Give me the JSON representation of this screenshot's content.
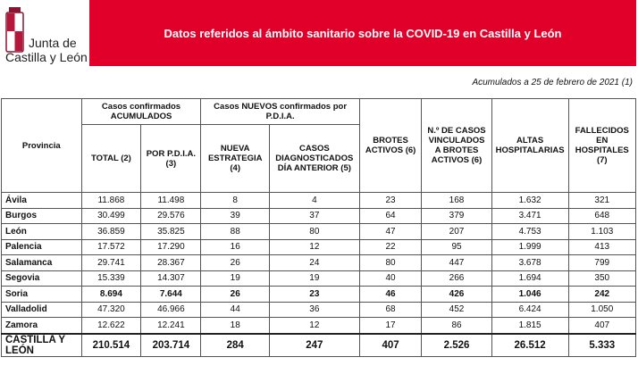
{
  "logo": {
    "line1": "Junta de",
    "line2": "Castilla y León"
  },
  "header": {
    "title": "Datos referidos al ámbito sanitario sobre la COVID-19 en Castilla y León"
  },
  "subtitle": "Acumulados a 25 de febrero de 2021 (1)",
  "table": {
    "group_headers": [
      "Casos confirmados ACUMULADOS",
      "Casos NUEVOS confirmados por P.D.I.A."
    ],
    "columns": [
      "Provincia",
      "TOTAL (2)",
      "POR P.D.I.A. (3)",
      "NUEVA ESTRATEGIA (4)",
      "CASOS DIAGNOSTICADOS DÍA ANTERIOR (5)",
      "BROTES ACTIVOS (6)",
      "N.º DE CASOS VINCULADOS A BROTES ACTIVOS (6)",
      "ALTAS HOSPITALARIAS",
      "FALLECIDOS EN HOSPITALES (7)"
    ],
    "rows": [
      [
        "Ávila",
        "11.868",
        "11.498",
        "8",
        "4",
        "23",
        "168",
        "1.632",
        "321"
      ],
      [
        "Burgos",
        "30.499",
        "29.576",
        "39",
        "37",
        "64",
        "379",
        "3.471",
        "648"
      ],
      [
        "León",
        "36.859",
        "35.825",
        "88",
        "80",
        "47",
        "207",
        "4.753",
        "1.103"
      ],
      [
        "Palencia",
        "17.572",
        "17.290",
        "16",
        "12",
        "22",
        "95",
        "1.999",
        "413"
      ],
      [
        "Salamanca",
        "29.741",
        "28.367",
        "26",
        "24",
        "80",
        "447",
        "3.678",
        "799"
      ],
      [
        "Segovia",
        "15.339",
        "14.307",
        "19",
        "19",
        "40",
        "266",
        "1.694",
        "350"
      ],
      [
        "Soria",
        "8.694",
        "7.644",
        "26",
        "23",
        "46",
        "426",
        "1.046",
        "242"
      ],
      [
        "Valladolid",
        "47.320",
        "46.966",
        "44",
        "36",
        "68",
        "452",
        "6.424",
        "1.050"
      ],
      [
        "Zamora",
        "12.622",
        "12.241",
        "18",
        "12",
        "17",
        "86",
        "1.815",
        "407"
      ]
    ],
    "total": [
      "CASTILLA Y LEÓN",
      "210.514",
      "203.714",
      "284",
      "247",
      "407",
      "2.526",
      "26.512",
      "5.333"
    ]
  }
}
